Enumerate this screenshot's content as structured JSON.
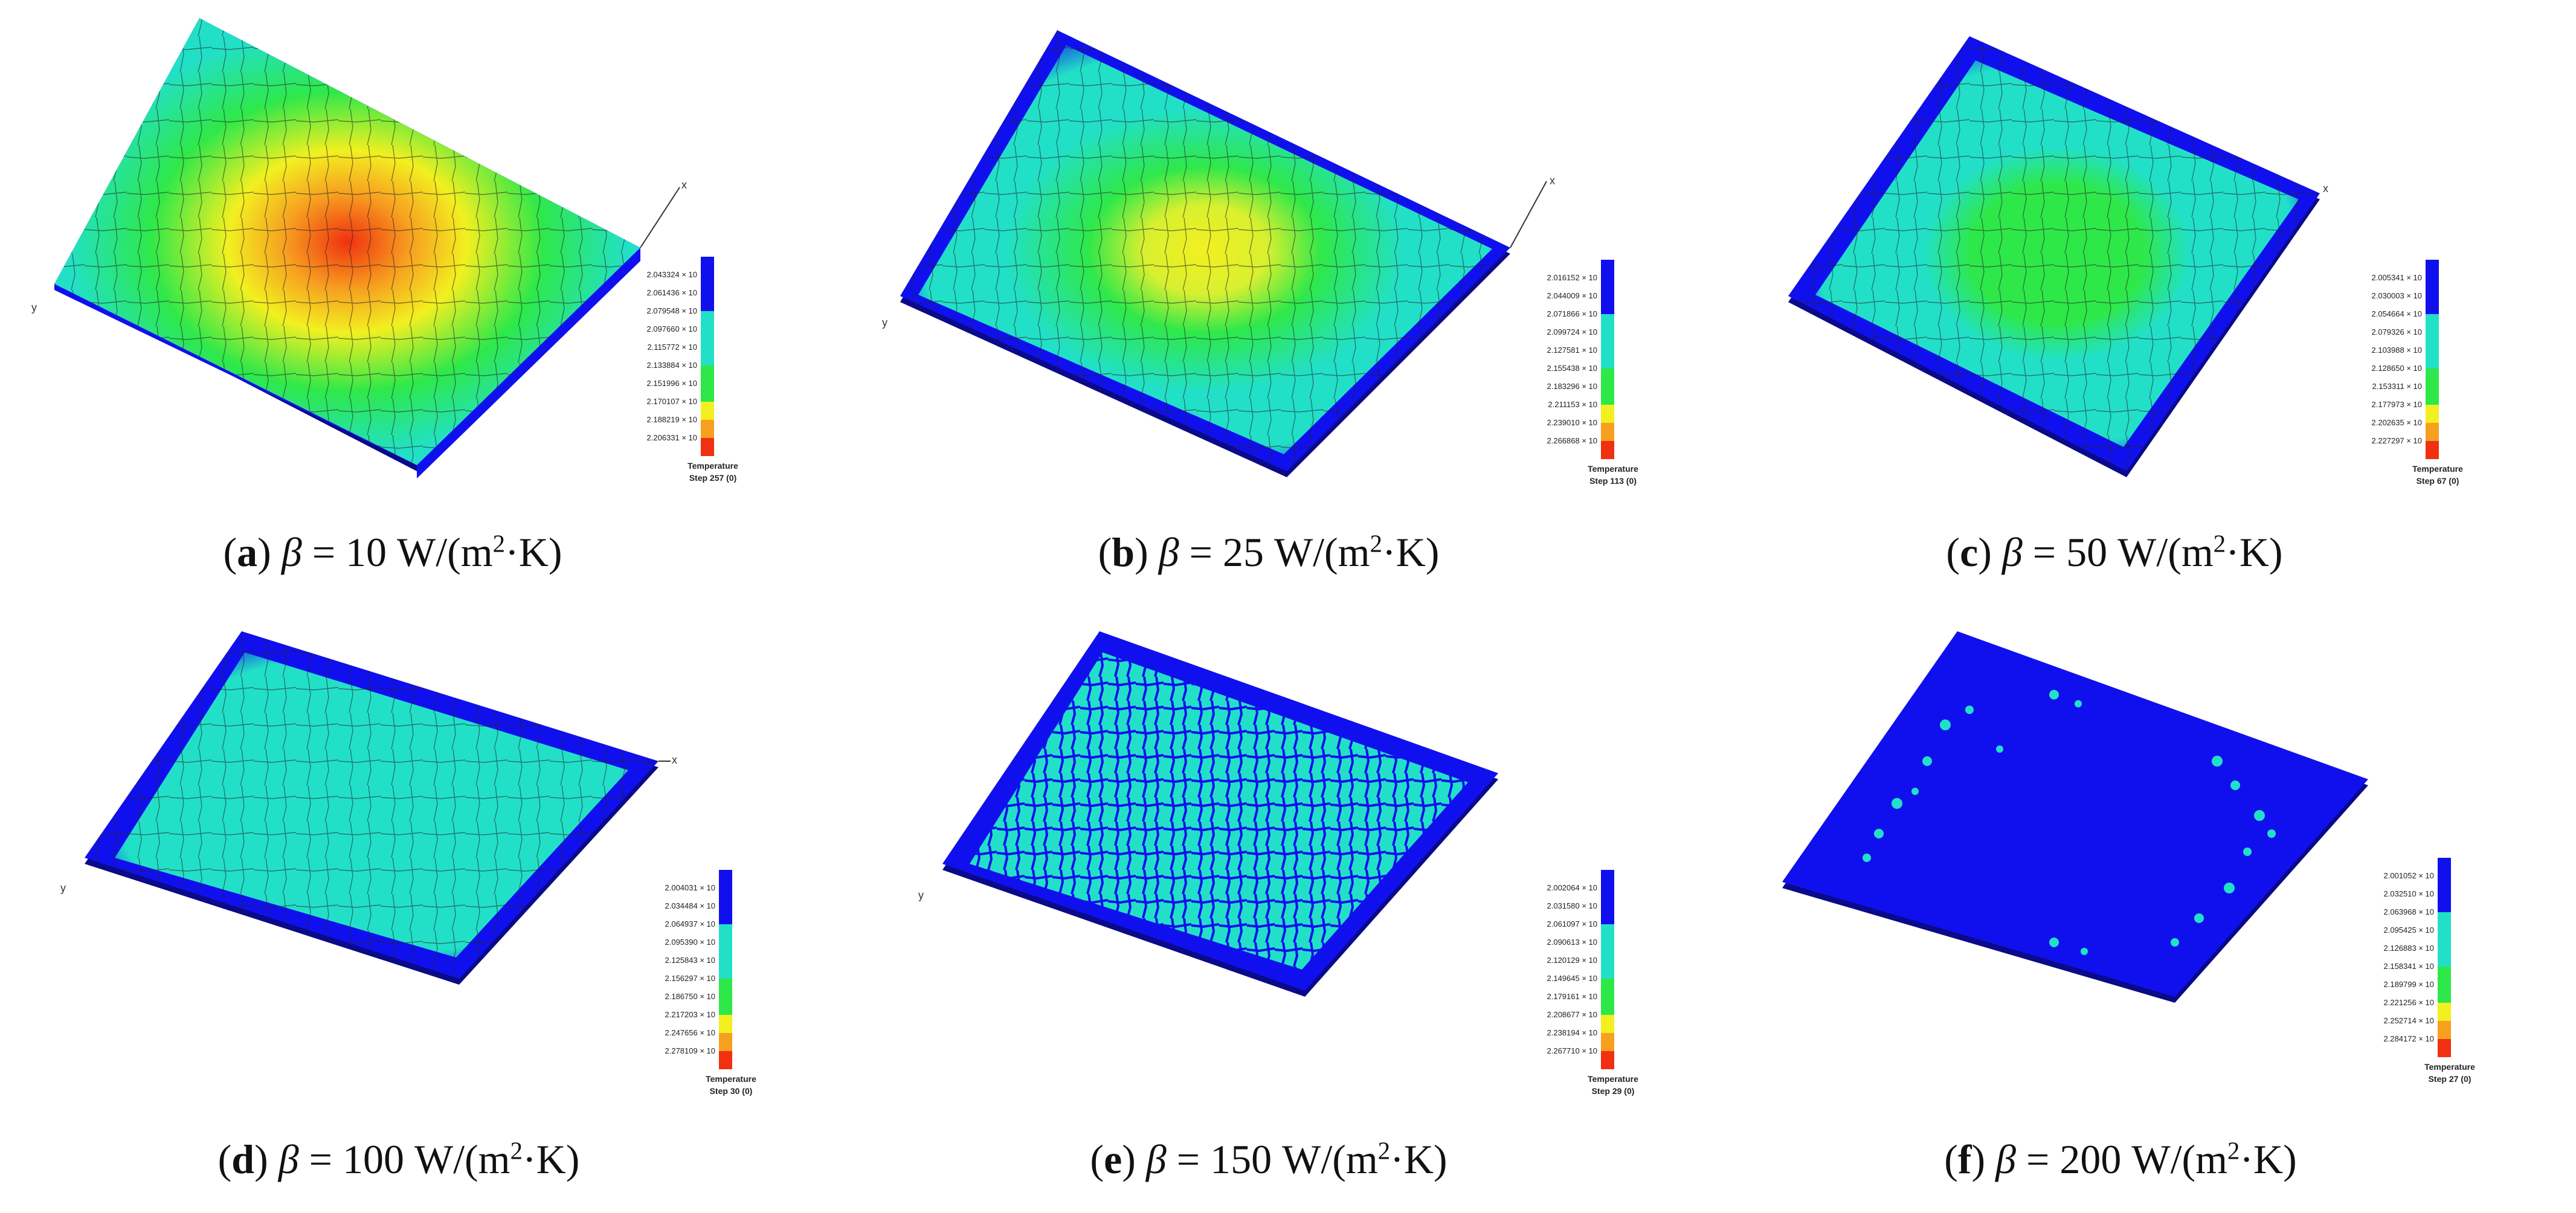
{
  "colors": {
    "blue": "#1010ee",
    "cyan": "#22e0c8",
    "green": "#2ee84a",
    "yellow": "#f2f020",
    "orange": "#f7a020",
    "red": "#f03010",
    "plate_edge": "#0a0a8a",
    "crack": "#222222"
  },
  "panels": [
    {
      "id": "a",
      "letter": "a",
      "caption_rest": " = 10 W/(m",
      "legend": {
        "values": [
          "2.043324 × 10",
          "2.061436 × 10",
          "2.079548 × 10",
          "2.097660 × 10",
          "2.115772 × 10",
          "2.133884 × 10",
          "2.151996 × 10",
          "2.170107 × 10",
          "2.188219 × 10",
          "2.206331 × 10"
        ],
        "title": "Temperature",
        "step": "Step 257 (0)"
      }
    },
    {
      "id": "b",
      "letter": "b",
      "caption_rest": " = 25 W/(m",
      "legend": {
        "values": [
          "2.016152 × 10",
          "2.044009 × 10",
          "2.071866 × 10",
          "2.099724 × 10",
          "2.127581 × 10",
          "2.155438 × 10",
          "2.183296 × 10",
          "2.211153 × 10",
          "2.239010 × 10",
          "2.266868 × 10"
        ],
        "title": "Temperature",
        "step": "Step 113 (0)"
      }
    },
    {
      "id": "c",
      "letter": "c",
      "caption_rest": " = 50 W/(m",
      "legend": {
        "values": [
          "2.005341 × 10",
          "2.030003 × 10",
          "2.054664 × 10",
          "2.079326 × 10",
          "2.103988 × 10",
          "2.128650 × 10",
          "2.153311 × 10",
          "2.177973 × 10",
          "2.202635 × 10",
          "2.227297 × 10"
        ],
        "title": "Temperature",
        "step": "Step 67 (0)"
      }
    },
    {
      "id": "d",
      "letter": "d",
      "caption_rest": " = 100 W/(m",
      "legend": {
        "values": [
          "2.004031 × 10",
          "2.034484 × 10",
          "2.064937 × 10",
          "2.095390 × 10",
          "2.125843 × 10",
          "2.156297 × 10",
          "2.186750 × 10",
          "2.217203 × 10",
          "2.247656 × 10",
          "2.278109 × 10"
        ],
        "title": "Temperature",
        "step": "Step 30 (0)"
      }
    },
    {
      "id": "e",
      "letter": "e",
      "caption_rest": " = 150 W/(m",
      "legend": {
        "values": [
          "2.002064 × 10",
          "2.031580 × 10",
          "2.061097 × 10",
          "2.090613 × 10",
          "2.120129 × 10",
          "2.149645 × 10",
          "2.179161 × 10",
          "2.208677 × 10",
          "2.238194 × 10",
          "2.267710 × 10"
        ],
        "title": "Temperature",
        "step": "Step 29 (0)"
      }
    },
    {
      "id": "f",
      "letter": "f",
      "caption_rest": " = 200 W/(m",
      "legend": {
        "values": [
          "2.001052 × 10",
          "2.032510 × 10",
          "2.063968 × 10",
          "2.095425 × 10",
          "2.126883 × 10",
          "2.158341 × 10",
          "2.189799 × 10",
          "2.221256 × 10",
          "2.252714 × 10",
          "2.284172 × 10"
        ],
        "title": "Temperature",
        "step": "Step 27 (0)"
      }
    }
  ],
  "caption_common": {
    "open": "(",
    "close": ") ",
    "beta": "β",
    "sup": "2",
    "tail": "·K)"
  },
  "axis_labels": {
    "x": "x",
    "y": "y"
  }
}
